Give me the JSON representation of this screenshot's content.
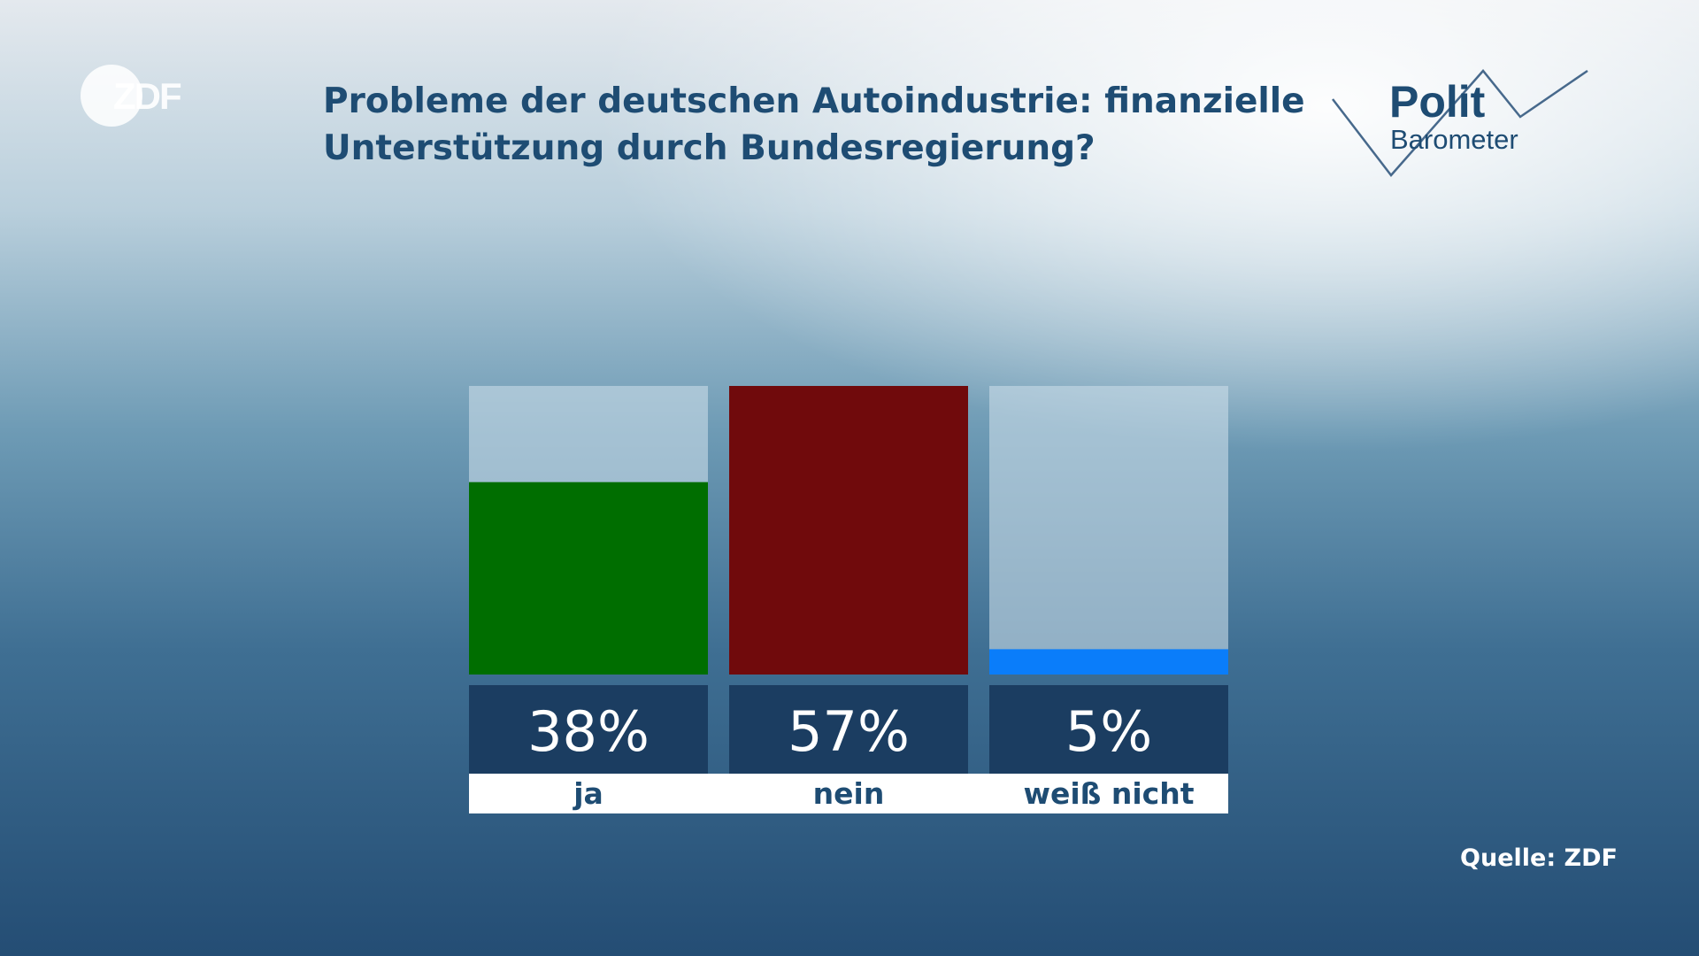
{
  "header": {
    "title": "Probleme der deutschen Autoindustrie: finanzielle Unterstützung durch Bundesregierung?",
    "brand": "ZDF",
    "logo_polit": "Polit",
    "logo_barometer": "Barometer"
  },
  "chart_data": {
    "type": "bar",
    "title": "Probleme der deutschen Autoindustrie: finanzielle Unterstützung durch Bundesregierung?",
    "categories": [
      "ja",
      "nein",
      "weiß nicht"
    ],
    "values": [
      38,
      57,
      5
    ],
    "value_labels": [
      "38%",
      "57%",
      "5%"
    ],
    "unit": "%",
    "ylim": [
      0,
      57
    ],
    "grid": false,
    "colors": [
      "#006e00",
      "#700a0c",
      "#0a7dfa"
    ],
    "track_color": "#c9dce7",
    "label_box_color": "#1b3d61"
  },
  "footer": {
    "source": "Quelle: ZDF"
  }
}
